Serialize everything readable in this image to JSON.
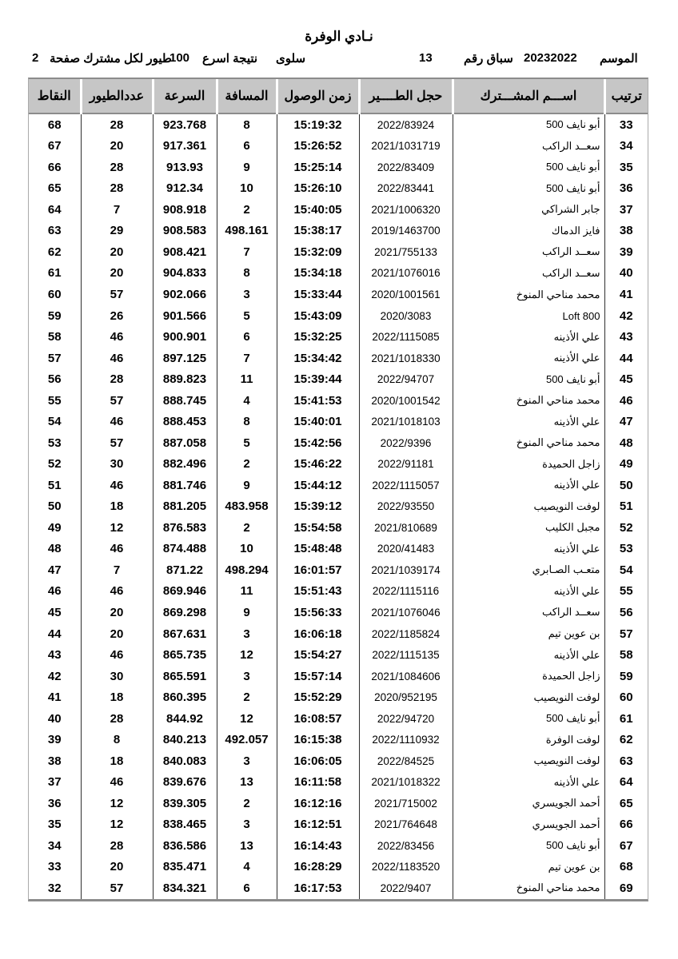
{
  "page": {
    "title": "نـادي الوفرة",
    "info": {
      "season_label": "الموسم",
      "season_value": "20232022",
      "race_label": "سباق رقم",
      "race_value": "13",
      "location": "سلوى",
      "result_label": "نتيجة اسرع",
      "result_value": "100",
      "per_participant_label": "طيور لكل مشترك صفحة",
      "page_number": "2"
    }
  },
  "colors": {
    "header_bg": "#c6c6c6",
    "grid_line": "#2f2f2f",
    "frame_line": "#8c8c8c",
    "text": "#000000"
  },
  "table": {
    "headers": {
      "rank": "ترتيب",
      "name": "اســـم المشـــترك",
      "ring": "حجل الطــــير",
      "arrival": "زمن الوصول",
      "distance": "المسافة",
      "speed": "السرعة",
      "birds": "عددالطيور",
      "points": "النقاط"
    },
    "rows": [
      {
        "rank": "33",
        "name": "أبو نايف 500",
        "ring": "2022/83924",
        "arrival": "15:19:32",
        "distance": "8",
        "speed": "923.768",
        "birds": "28",
        "points": "68"
      },
      {
        "rank": "34",
        "name": "سعــد الراكب",
        "ring": "2021/1031719",
        "arrival": "15:26:52",
        "distance": "6",
        "speed": "917.361",
        "birds": "20",
        "points": "67"
      },
      {
        "rank": "35",
        "name": "أبو نايف 500",
        "ring": "2022/83409",
        "arrival": "15:25:14",
        "distance": "9",
        "speed": "913.93",
        "birds": "28",
        "points": "66"
      },
      {
        "rank": "36",
        "name": "أبو نايف 500",
        "ring": "2022/83441",
        "arrival": "15:26:10",
        "distance": "10",
        "speed": "912.34",
        "birds": "28",
        "points": "65"
      },
      {
        "rank": "37",
        "name": "جابر الشراكي",
        "ring": "2021/1006320",
        "arrival": "15:40:05",
        "distance": "2",
        "speed": "908.918",
        "birds": "7",
        "points": "64"
      },
      {
        "rank": "38",
        "name": "فايز الدماك",
        "ring": "2019/1463700",
        "arrival": "15:38:17",
        "distance": "498.161",
        "speed": "908.583",
        "birds": "29",
        "points": "63"
      },
      {
        "rank": "39",
        "name": "سعــد الراكب",
        "ring": "2021/755133",
        "arrival": "15:32:09",
        "distance": "7",
        "speed": "908.421",
        "birds": "20",
        "points": "62"
      },
      {
        "rank": "40",
        "name": "سعــد الراكب",
        "ring": "2021/1076016",
        "arrival": "15:34:18",
        "distance": "8",
        "speed": "904.833",
        "birds": "20",
        "points": "61"
      },
      {
        "rank": "41",
        "name": "محمد مناحي المنوخ",
        "ring": "2020/1001561",
        "arrival": "15:33:44",
        "distance": "3",
        "speed": "902.066",
        "birds": "57",
        "points": "60"
      },
      {
        "rank": "42",
        "name": "Loft 800",
        "ring": "2020/3083",
        "arrival": "15:43:09",
        "distance": "5",
        "speed": "901.566",
        "birds": "26",
        "points": "59"
      },
      {
        "rank": "43",
        "name": "علي الأذينه",
        "ring": "2022/1115085",
        "arrival": "15:32:25",
        "distance": "6",
        "speed": "900.901",
        "birds": "46",
        "points": "58"
      },
      {
        "rank": "44",
        "name": "علي الأذينه",
        "ring": "2021/1018330",
        "arrival": "15:34:42",
        "distance": "7",
        "speed": "897.125",
        "birds": "46",
        "points": "57"
      },
      {
        "rank": "45",
        "name": "أبو نايف 500",
        "ring": "2022/94707",
        "arrival": "15:39:44",
        "distance": "11",
        "speed": "889.823",
        "birds": "28",
        "points": "56"
      },
      {
        "rank": "46",
        "name": "محمد مناحي المنوخ",
        "ring": "2020/1001542",
        "arrival": "15:41:53",
        "distance": "4",
        "speed": "888.745",
        "birds": "57",
        "points": "55"
      },
      {
        "rank": "47",
        "name": "علي الأذينه",
        "ring": "2021/1018103",
        "arrival": "15:40:01",
        "distance": "8",
        "speed": "888.453",
        "birds": "46",
        "points": "54"
      },
      {
        "rank": "48",
        "name": "محمد مناحي المنوخ",
        "ring": "2022/9396",
        "arrival": "15:42:56",
        "distance": "5",
        "speed": "887.058",
        "birds": "57",
        "points": "53"
      },
      {
        "rank": "49",
        "name": "زاجل الحميدة",
        "ring": "2022/91181",
        "arrival": "15:46:22",
        "distance": "2",
        "speed": "882.496",
        "birds": "30",
        "points": "52"
      },
      {
        "rank": "50",
        "name": "علي الأذينه",
        "ring": "2022/1115057",
        "arrival": "15:44:12",
        "distance": "9",
        "speed": "881.746",
        "birds": "46",
        "points": "51"
      },
      {
        "rank": "51",
        "name": "لوفت النويصيب",
        "ring": "2022/93550",
        "arrival": "15:39:12",
        "distance": "483.958",
        "speed": "881.205",
        "birds": "18",
        "points": "50"
      },
      {
        "rank": "52",
        "name": "مجبل الكليب",
        "ring": "2021/810689",
        "arrival": "15:54:58",
        "distance": "2",
        "speed": "876.583",
        "birds": "12",
        "points": "49"
      },
      {
        "rank": "53",
        "name": "علي الأذينه",
        "ring": "2020/41483",
        "arrival": "15:48:48",
        "distance": "10",
        "speed": "874.488",
        "birds": "46",
        "points": "48"
      },
      {
        "rank": "54",
        "name": "متعـب الصـابري",
        "ring": "2021/1039174",
        "arrival": "16:01:57",
        "distance": "498.294",
        "speed": "871.22",
        "birds": "7",
        "points": "47"
      },
      {
        "rank": "55",
        "name": "علي الأذينه",
        "ring": "2022/1115116",
        "arrival": "15:51:43",
        "distance": "11",
        "speed": "869.946",
        "birds": "46",
        "points": "46"
      },
      {
        "rank": "56",
        "name": "سعــد الراكب",
        "ring": "2021/1076046",
        "arrival": "15:56:33",
        "distance": "9",
        "speed": "869.298",
        "birds": "20",
        "points": "45"
      },
      {
        "rank": "57",
        "name": "بن عوين تيم",
        "ring": "2022/1185824",
        "arrival": "16:06:18",
        "distance": "3",
        "speed": "867.631",
        "birds": "20",
        "points": "44"
      },
      {
        "rank": "58",
        "name": "علي الأذينه",
        "ring": "2022/1115135",
        "arrival": "15:54:27",
        "distance": "12",
        "speed": "865.735",
        "birds": "46",
        "points": "43"
      },
      {
        "rank": "59",
        "name": "زاجل الحميدة",
        "ring": "2021/1084606",
        "arrival": "15:57:14",
        "distance": "3",
        "speed": "865.591",
        "birds": "30",
        "points": "42"
      },
      {
        "rank": "60",
        "name": "لوفت النويصيب",
        "ring": "2020/952195",
        "arrival": "15:52:29",
        "distance": "2",
        "speed": "860.395",
        "birds": "18",
        "points": "41"
      },
      {
        "rank": "61",
        "name": "أبو نايف 500",
        "ring": "2022/94720",
        "arrival": "16:08:57",
        "distance": "12",
        "speed": "844.92",
        "birds": "28",
        "points": "40"
      },
      {
        "rank": "62",
        "name": "لوفت الوفرة",
        "ring": "2022/1110932",
        "arrival": "16:15:38",
        "distance": "492.057",
        "speed": "840.213",
        "birds": "8",
        "points": "39"
      },
      {
        "rank": "63",
        "name": "لوفت النويصيب",
        "ring": "2022/84525",
        "arrival": "16:06:05",
        "distance": "3",
        "speed": "840.083",
        "birds": "18",
        "points": "38"
      },
      {
        "rank": "64",
        "name": "علي الأذينه",
        "ring": "2021/1018322",
        "arrival": "16:11:58",
        "distance": "13",
        "speed": "839.676",
        "birds": "46",
        "points": "37"
      },
      {
        "rank": "65",
        "name": "أحمد الجويسري",
        "ring": "2021/715002",
        "arrival": "16:12:16",
        "distance": "2",
        "speed": "839.305",
        "birds": "12",
        "points": "36"
      },
      {
        "rank": "66",
        "name": "أحمد الجويسري",
        "ring": "2021/764648",
        "arrival": "16:12:51",
        "distance": "3",
        "speed": "838.465",
        "birds": "12",
        "points": "35"
      },
      {
        "rank": "67",
        "name": "أبو نايف 500",
        "ring": "2022/83456",
        "arrival": "16:14:43",
        "distance": "13",
        "speed": "836.586",
        "birds": "28",
        "points": "34"
      },
      {
        "rank": "68",
        "name": "بن عوين تيم",
        "ring": "2022/1183520",
        "arrival": "16:28:29",
        "distance": "4",
        "speed": "835.471",
        "birds": "20",
        "points": "33"
      },
      {
        "rank": "69",
        "name": "محمد مناحي المنوخ",
        "ring": "2022/9407",
        "arrival": "16:17:53",
        "distance": "6",
        "speed": "834.321",
        "birds": "57",
        "points": "32"
      }
    ]
  }
}
